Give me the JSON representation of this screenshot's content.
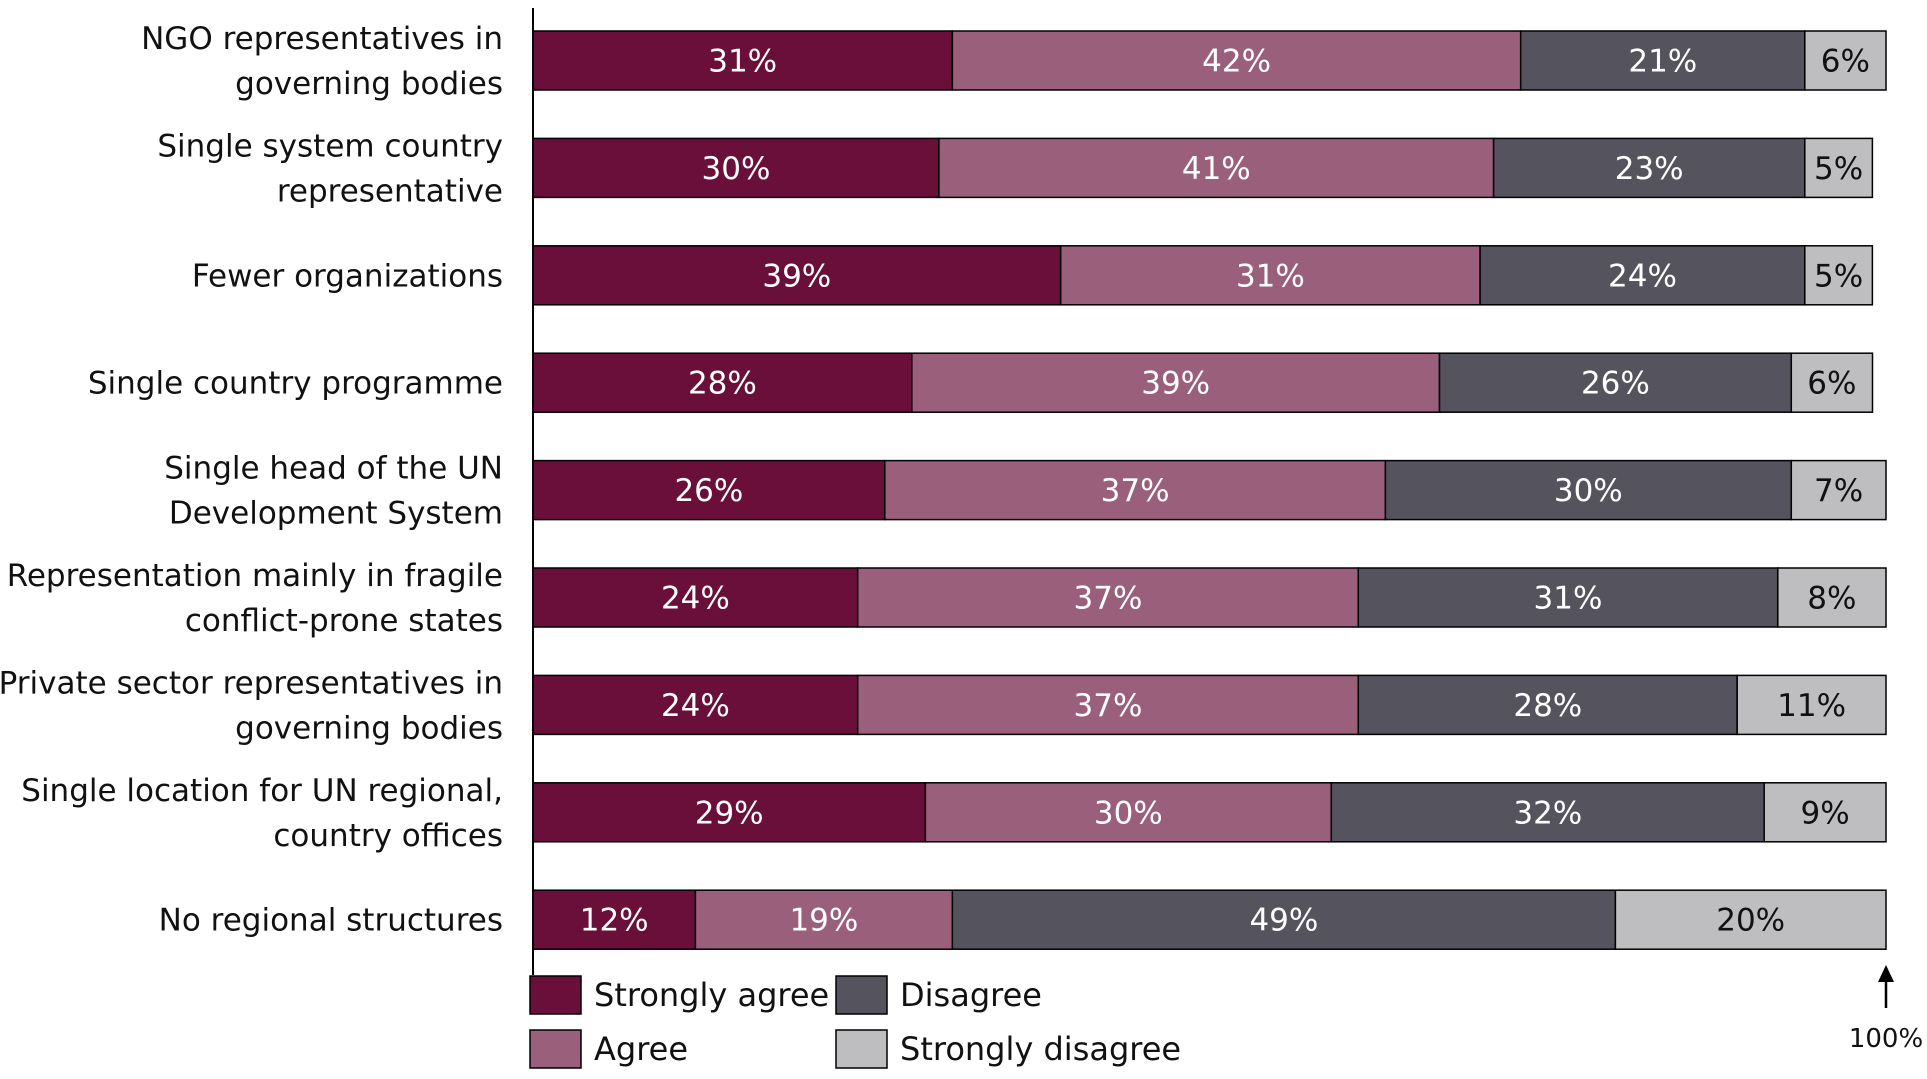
{
  "chart_data": {
    "type": "bar",
    "orientation": "horizontal",
    "stacked": true,
    "categories": [
      [
        "NGO representatives in",
        "governing bodies"
      ],
      [
        "Single system country",
        "representative"
      ],
      [
        "Fewer organizations"
      ],
      [
        "Single country programme"
      ],
      [
        "Single head of the UN",
        "Development System"
      ],
      [
        "Representation mainly in fragile",
        "conflict-prone states"
      ],
      [
        "Private sector representatives in",
        "governing bodies"
      ],
      [
        "Single location for UN regional,",
        "country offices"
      ],
      [
        "No regional structures"
      ]
    ],
    "series": [
      {
        "name": "Strongly agree",
        "color": "#6a0f3a",
        "label_color": "#ffffff",
        "values": [
          31,
          30,
          39,
          28,
          26,
          24,
          24,
          29,
          12
        ]
      },
      {
        "name": "Agree",
        "color": "#9a5f7a",
        "label_color": "#ffffff",
        "values": [
          42,
          41,
          31,
          39,
          37,
          37,
          37,
          30,
          19
        ]
      },
      {
        "name": "Disagree",
        "color": "#55545e",
        "label_color": "#ffffff",
        "values": [
          21,
          23,
          24,
          26,
          30,
          31,
          28,
          32,
          49
        ]
      },
      {
        "name": "Strongly disagree",
        "color": "#bebdc0",
        "label_color": "#111111",
        "values": [
          6,
          5,
          5,
          6,
          7,
          8,
          11,
          9,
          20
        ]
      }
    ],
    "value_suffix": "%",
    "xlim": [
      0,
      100
    ],
    "end_marker_label": "100%",
    "legend": {
      "placement": "bottom-left",
      "rows": [
        [
          "Strongly agree",
          "Disagree"
        ],
        [
          "Agree",
          "Strongly disagree"
        ]
      ]
    },
    "grid": false
  }
}
